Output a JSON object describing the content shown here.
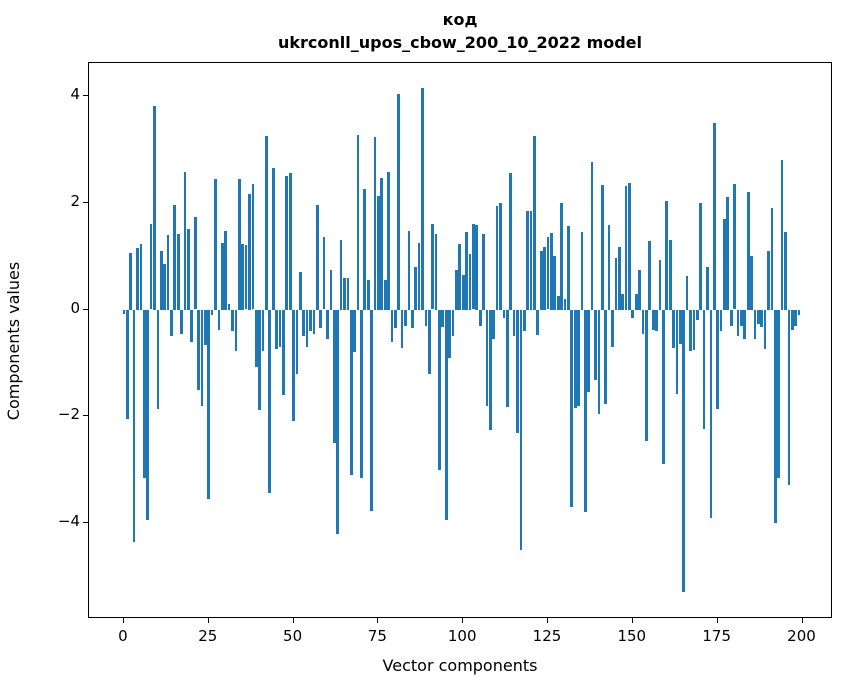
{
  "figure": {
    "title_line1": "код",
    "title_line2": "ukrconll_upos_cbow_200_10_2022 model"
  },
  "chart_data": {
    "type": "bar",
    "title": "код",
    "subtitle": "ukrconll_upos_cbow_200_10_2022 model",
    "xlabel": "Vector components",
    "ylabel": "Components values",
    "x_start": 0,
    "n_bars": 200,
    "bar_color": "#1f77b4",
    "bar_width": 0.8,
    "grid": false,
    "legend": null,
    "xticks": [
      0,
      25,
      50,
      75,
      100,
      125,
      150,
      175,
      200
    ],
    "yticks": [
      -4,
      -2,
      0,
      2,
      4
    ],
    "xlim": [
      -10.3,
      209.0
    ],
    "ylim": [
      -5.8,
      4.62
    ],
    "values": [
      -0.08,
      -2.05,
      1.06,
      -4.35,
      1.16,
      1.23,
      -3.15,
      -3.95,
      1.6,
      3.82,
      -1.86,
      1.1,
      0.85,
      1.4,
      -0.5,
      1.96,
      1.42,
      -0.45,
      2.57,
      1.5,
      -0.6,
      1.74,
      -1.5,
      -1.8,
      -0.67,
      -3.55,
      -0.1,
      2.45,
      -0.38,
      1.25,
      1.48,
      0.1,
      -0.4,
      -0.78,
      2.45,
      1.23,
      1.21,
      2.16,
      2.35,
      -1.08,
      -1.89,
      -0.78,
      3.25,
      -3.43,
      2.65,
      -0.74,
      -0.7,
      -1.6,
      2.5,
      2.55,
      -2.08,
      -1.2,
      0.7,
      -0.5,
      -0.7,
      -0.4,
      -0.45,
      1.95,
      -0.35,
      1.35,
      -0.55,
      0.75,
      -2.5,
      -4.2,
      1.3,
      0.6,
      0.6,
      -3.1,
      -0.8,
      3.28,
      -3.15,
      2.26,
      0.55,
      -3.78,
      3.24,
      2.12,
      2.47,
      0.55,
      2.57,
      -0.6,
      -0.35,
      4.03,
      -0.73,
      -0.3,
      1.47,
      -0.35,
      0.79,
      1.25,
      4.15,
      -0.3,
      -1.2,
      1.6,
      1.42,
      -3.0,
      -0.33,
      -3.95,
      -0.9,
      -0.5,
      0.75,
      1.23,
      0.65,
      1.46,
      1.04,
      1.6,
      1.58,
      -0.3,
      1.42,
      -1.8,
      -2.26,
      -0.55,
      1.94,
      2.0,
      -0.16,
      -1.83,
      2.55,
      -0.5,
      -2.31,
      -4.5,
      -0.4,
      1.85,
      1.85,
      3.26,
      -0.48,
      1.09,
      1.17,
      1.35,
      1.44,
      1.0,
      0.25,
      2.0,
      0.2,
      1.57,
      -3.7,
      -1.85,
      -1.8,
      1.46,
      -3.8,
      -1.55,
      2.76,
      -1.33,
      -1.96,
      2.34,
      -1.77,
      1.58,
      -0.7,
      0.96,
      1.17,
      0.3,
      2.32,
      2.37,
      -0.15,
      0.3,
      0.75,
      -0.45,
      -2.46,
      1.28,
      -0.38,
      -0.4,
      0.92,
      -2.9,
      2.03,
      1.31,
      -0.72,
      -1.58,
      -0.65,
      -5.3,
      0.62,
      -0.78,
      -0.75,
      -0.2,
      2.0,
      -2.24,
      0.8,
      -3.9,
      3.5,
      -1.87,
      -0.4,
      1.7,
      2.1,
      -0.3,
      2.35,
      -0.5,
      -0.3,
      -0.55,
      2.2,
      1.0,
      -0.55,
      -0.28,
      -0.32,
      -0.74,
      1.1,
      1.9,
      -4.0,
      -3.15,
      2.8,
      1.45,
      -3.28,
      -0.38,
      -0.3,
      -0.11
    ]
  }
}
